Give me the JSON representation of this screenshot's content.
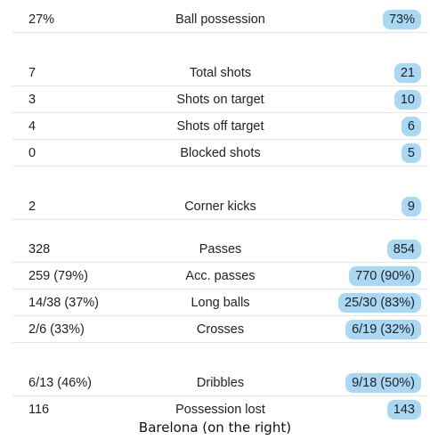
{
  "stats": [
    {
      "left": "27%",
      "label": "Ball possession",
      "right": "73%"
    },
    {
      "left": "7",
      "label": "Total shots",
      "right": "21"
    },
    {
      "left": "3",
      "label": "Shots on target",
      "right": "10"
    },
    {
      "left": "4",
      "label": "Shots off target",
      "right": "6"
    },
    {
      "left": "0",
      "label": "Blocked shots",
      "right": "5"
    },
    {
      "left": "2",
      "label": "Corner kicks",
      "right": "9"
    },
    {
      "left": "328",
      "label": "Passes",
      "right": "854"
    },
    {
      "left": "259 (79%)",
      "label": "Acc. passes",
      "right": "770 (90%)"
    },
    {
      "left": "14/38 (37%)",
      "label": "Long balls",
      "right": "25/30 (83%)"
    },
    {
      "left": "2/6 (33%)",
      "label": "Crosses",
      "right": "6/19 (32%)"
    },
    {
      "left": "6/13 (46%)",
      "label": "Dribbles",
      "right": "9/18 (50%)"
    },
    {
      "left": "116",
      "label": "Possession lost",
      "right": "143"
    }
  ],
  "caption": "Barelona (on the right)",
  "colors": {
    "highlight": "#a9d8f5",
    "divider": "#e6e6e6",
    "text": "#222222"
  }
}
